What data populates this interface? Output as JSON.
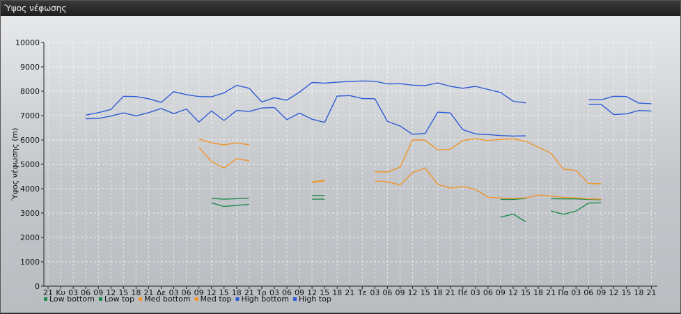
{
  "window": {
    "title": "Ύψος νέφωσης"
  },
  "chart_data": {
    "type": "line",
    "ylabel": "Ύψος νέφωσης (m)",
    "ylim": [
      0,
      10000
    ],
    "yticks": [
      0,
      1000,
      2000,
      3000,
      4000,
      5000,
      6000,
      7000,
      8000,
      9000,
      10000
    ],
    "grid": true,
    "legend_position": "bottom-left",
    "categories": [
      "21",
      "Κυ",
      "03",
      "06",
      "09",
      "12",
      "15",
      "18",
      "21",
      "Δε",
      "03",
      "06",
      "09",
      "12",
      "15",
      "18",
      "21",
      "Τρ",
      "03",
      "06",
      "09",
      "12",
      "15",
      "18",
      "21",
      "Τε",
      "03",
      "06",
      "09",
      "12",
      "15",
      "18",
      "21",
      "Πέ",
      "03",
      "06",
      "09",
      "12",
      "15",
      "18",
      "21",
      "Πα",
      "03",
      "06",
      "09",
      "12",
      "15",
      "18",
      "21"
    ],
    "series": [
      {
        "name": "Low bottom",
        "color": "#1e8c4e",
        "values": [
          null,
          null,
          null,
          null,
          null,
          null,
          null,
          null,
          null,
          null,
          null,
          null,
          null,
          3420,
          3270,
          3310,
          3360,
          null,
          null,
          null,
          null,
          3570,
          3570,
          null,
          null,
          null,
          null,
          null,
          null,
          null,
          null,
          null,
          null,
          null,
          null,
          null,
          2830,
          2960,
          2640,
          null,
          3090,
          2950,
          3080,
          3410,
          3420,
          null,
          null,
          null,
          null
        ]
      },
      {
        "name": "Low top",
        "color": "#1e8c4e",
        "values": [
          null,
          null,
          null,
          null,
          null,
          null,
          null,
          null,
          null,
          null,
          null,
          null,
          null,
          3600,
          3570,
          3590,
          3610,
          null,
          null,
          null,
          null,
          3720,
          3720,
          null,
          null,
          null,
          null,
          null,
          null,
          null,
          null,
          null,
          null,
          null,
          null,
          null,
          3560,
          3560,
          3600,
          null,
          3590,
          3580,
          3580,
          3560,
          3550,
          null,
          null,
          null,
          null
        ]
      },
      {
        "name": "Med bottom",
        "color": "#f0952a",
        "values": [
          null,
          null,
          null,
          null,
          null,
          null,
          null,
          null,
          null,
          null,
          null,
          null,
          5690,
          5120,
          4850,
          5230,
          5150,
          null,
          null,
          null,
          null,
          4260,
          4310,
          null,
          null,
          null,
          4310,
          4290,
          4150,
          4660,
          4850,
          4180,
          4020,
          4090,
          3970,
          3650,
          3620,
          3600,
          3620,
          3740,
          3700,
          3640,
          3620,
          3580,
          3570,
          null,
          null,
          null,
          null
        ]
      },
      {
        "name": "Med top",
        "color": "#f0952a",
        "values": [
          null,
          null,
          null,
          null,
          null,
          null,
          null,
          null,
          null,
          null,
          null,
          null,
          6040,
          5880,
          5800,
          5880,
          5800,
          null,
          null,
          null,
          null,
          4280,
          4340,
          null,
          null,
          null,
          4700,
          4680,
          4880,
          6000,
          5990,
          5590,
          5620,
          5980,
          6050,
          5980,
          6020,
          6040,
          5950,
          5700,
          5460,
          4800,
          4750,
          4210,
          4200,
          null,
          null,
          null,
          null
        ]
      },
      {
        "name": "High bottom",
        "color": "#2e5bd6",
        "values": [
          null,
          null,
          null,
          6870,
          6880,
          6980,
          7110,
          6990,
          7120,
          7290,
          7080,
          7270,
          6730,
          7190,
          6800,
          7210,
          7170,
          7310,
          7330,
          6830,
          7100,
          6850,
          6720,
          7800,
          7820,
          7700,
          7690,
          6760,
          6570,
          6230,
          6270,
          7140,
          7110,
          6420,
          6250,
          6220,
          6180,
          6160,
          6170,
          null,
          null,
          null,
          null,
          7460,
          7460,
          7040,
          7070,
          7210,
          7190
        ]
      },
      {
        "name": "High top",
        "color": "#2e5bd6",
        "values": [
          null,
          null,
          null,
          7020,
          7120,
          7250,
          7790,
          7780,
          7690,
          7540,
          7980,
          7860,
          7780,
          7770,
          7930,
          8240,
          8120,
          7560,
          7730,
          7630,
          7960,
          8360,
          8330,
          8370,
          8400,
          8420,
          8410,
          8300,
          8310,
          8250,
          8230,
          8340,
          8200,
          8120,
          8200,
          8070,
          7950,
          7590,
          7520,
          null,
          null,
          null,
          null,
          7650,
          7650,
          7790,
          7780,
          7510,
          7490
        ]
      }
    ]
  }
}
